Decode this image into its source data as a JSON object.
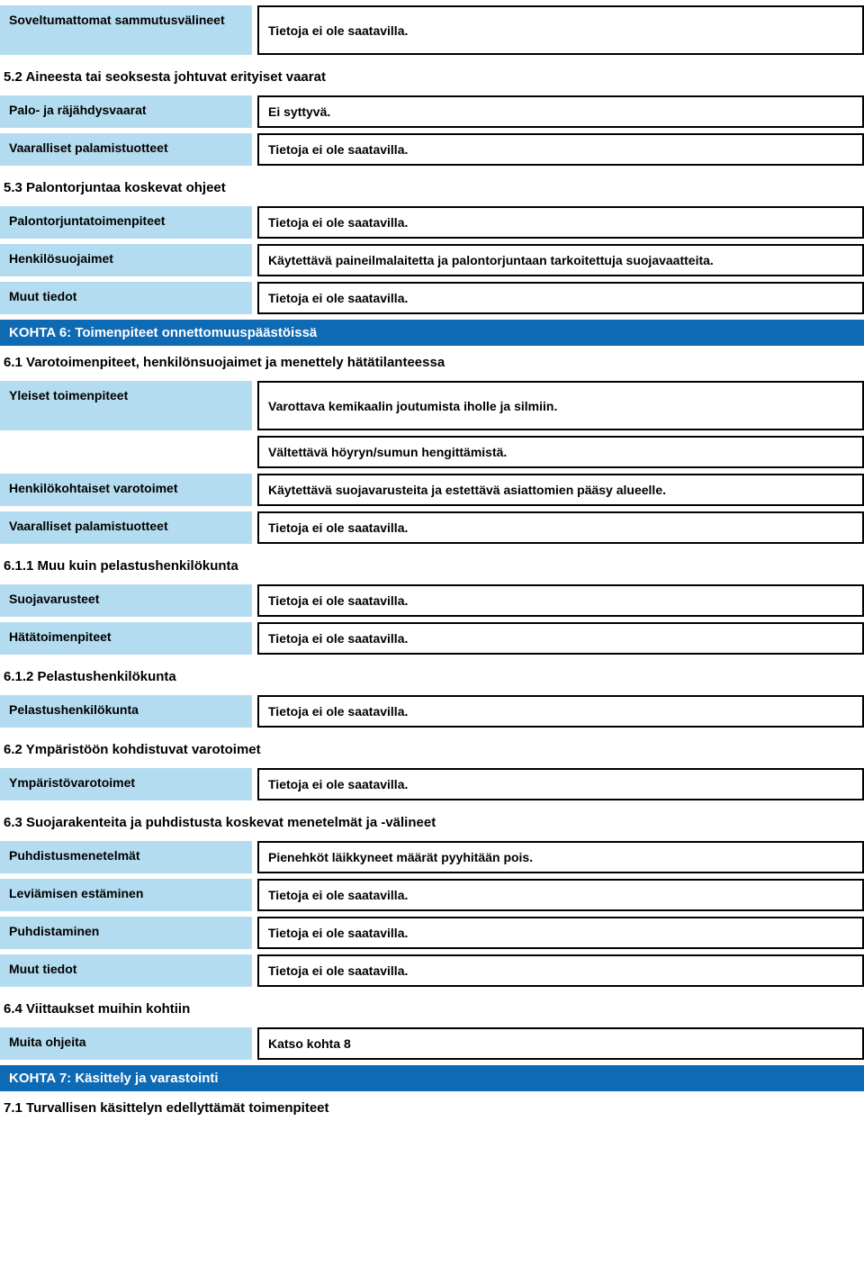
{
  "r1": {
    "label": "Soveltumattomat sammutusvälineet",
    "value": "Tietoja ei ole saatavilla."
  },
  "h52": "5.2 Aineesta tai seoksesta johtuvat erityiset vaarat",
  "r2": {
    "label": "Palo- ja räjähdysvaarat",
    "value": "Ei syttyvä."
  },
  "r3": {
    "label": "Vaaralliset palamistuotteet",
    "value": "Tietoja ei ole saatavilla."
  },
  "h53": "5.3 Palontorjuntaa koskevat ohjeet",
  "r4": {
    "label": "Palontorjuntatoimenpiteet",
    "value": "Tietoja ei ole saatavilla."
  },
  "r5": {
    "label": "Henkilösuojaimet",
    "value": "Käytettävä paineilmalaitetta ja palontorjuntaan tarkoitettuja suojavaatteita."
  },
  "r6": {
    "label": "Muut tiedot",
    "value": "Tietoja ei ole saatavilla."
  },
  "k6": "KOHTA 6: Toimenpiteet onnettomuuspäästöissä",
  "h61": "6.1 Varotoimenpiteet, henkilönsuojaimet ja menettely hätätilanteessa",
  "r7": {
    "label": "Yleiset toimenpiteet",
    "value": "Varottava kemikaalin joutumista iholle ja silmiin.",
    "value2": "Vältettävä höyryn/sumun hengittämistä."
  },
  "r8": {
    "label": "Henkilökohtaiset varotoimet",
    "value": "Käytettävä suojavarusteita ja estettävä asiattomien pääsy alueelle."
  },
  "r9": {
    "label": "Vaaralliset palamistuotteet",
    "value": "Tietoja ei ole saatavilla."
  },
  "h611": "6.1.1 Muu kuin pelastushenkilökunta",
  "r10": {
    "label": "Suojavarusteet",
    "value": "Tietoja ei ole saatavilla."
  },
  "r11": {
    "label": "Hätätoimenpiteet",
    "value": "Tietoja ei ole saatavilla."
  },
  "h612": "6.1.2 Pelastushenkilökunta",
  "r12": {
    "label": "Pelastushenkilökunta",
    "value": "Tietoja ei ole saatavilla."
  },
  "h62": "6.2 Ympäristöön kohdistuvat varotoimet",
  "r13": {
    "label": "Ympäristövarotoimet",
    "value": "Tietoja ei ole saatavilla."
  },
  "h63": "6.3 Suojarakenteita ja puhdistusta koskevat menetelmät ja -välineet",
  "r14": {
    "label": "Puhdistusmenetelmät",
    "value": "Pienehköt läikkyneet määrät pyyhitään pois."
  },
  "r15": {
    "label": "Leviämisen estäminen",
    "value": "Tietoja ei ole saatavilla."
  },
  "r16": {
    "label": "Puhdistaminen",
    "value": "Tietoja ei ole saatavilla."
  },
  "r17": {
    "label": "Muut tiedot",
    "value": "Tietoja ei ole saatavilla."
  },
  "h64": "6.4 Viittaukset muihin kohtiin",
  "r18": {
    "label": "Muita ohjeita",
    "value": "Katso kohta 8"
  },
  "k7": "KOHTA 7: Käsittely ja varastointi",
  "h71": "7.1 Turvallisen käsittelyn edellyttämät toimenpiteet"
}
